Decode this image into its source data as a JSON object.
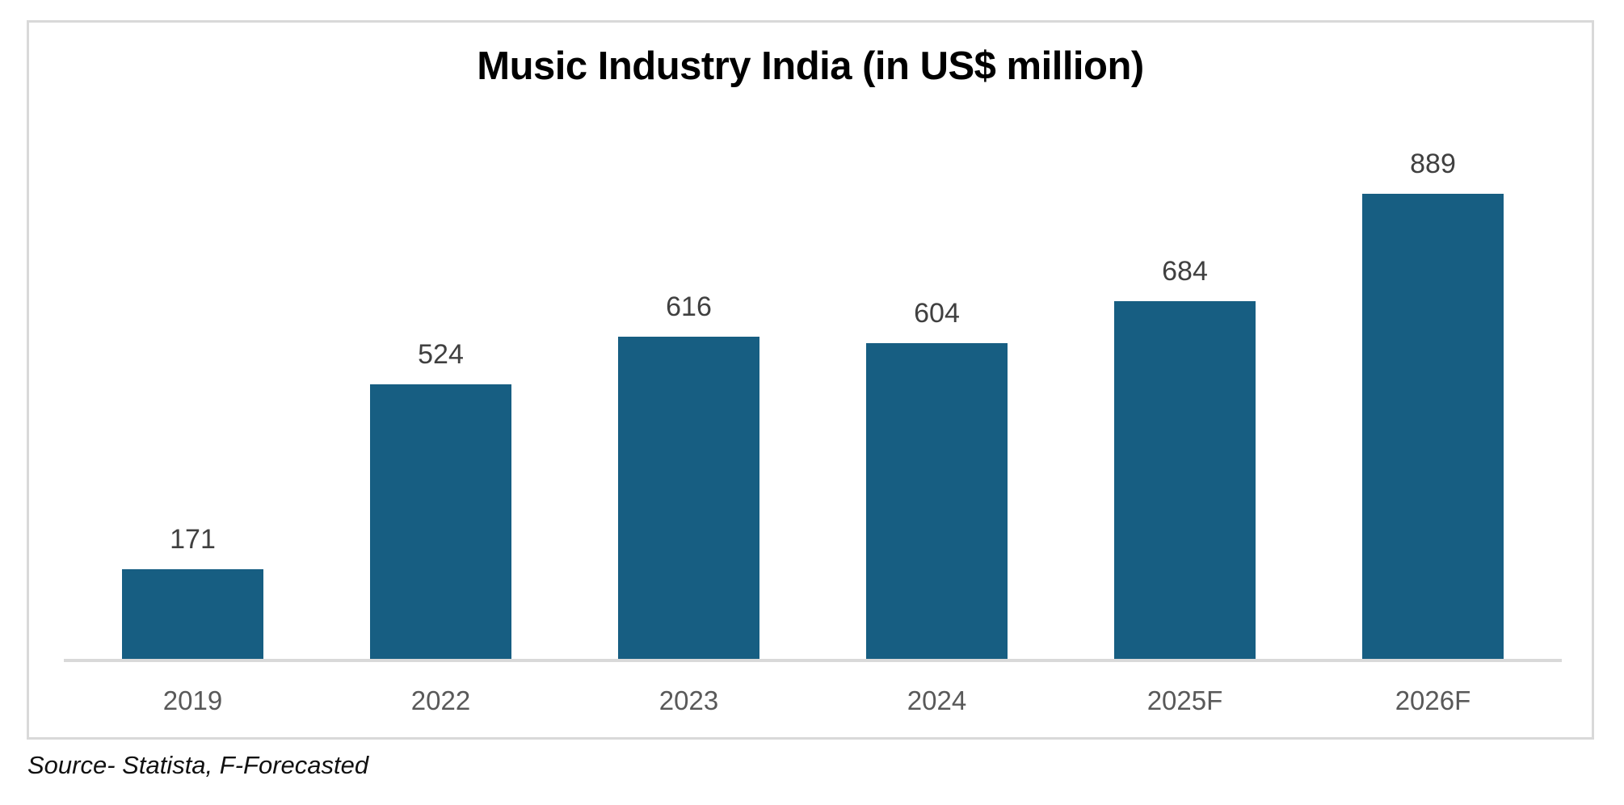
{
  "chart_data": {
    "type": "bar",
    "title": "Music Industry India (in US$ million)",
    "categories": [
      "2019",
      "2022",
      "2023",
      "2024",
      "2025F",
      "2026F"
    ],
    "values": [
      171,
      524,
      616,
      604,
      684,
      889
    ],
    "xlabel": "",
    "ylabel": "",
    "ylim": [
      0,
      1000
    ],
    "grid": false,
    "legend": "none",
    "data_labels_shown": true,
    "bar_color": "#175e82",
    "value_label_color": "#404040",
    "axis_label_color": "#595959",
    "axis_line_color": "#d9d9d9",
    "frame_border_color": "#d9d9d9",
    "background_color": "#ffffff"
  },
  "source_note": "Source- Statista, F-Forecasted"
}
